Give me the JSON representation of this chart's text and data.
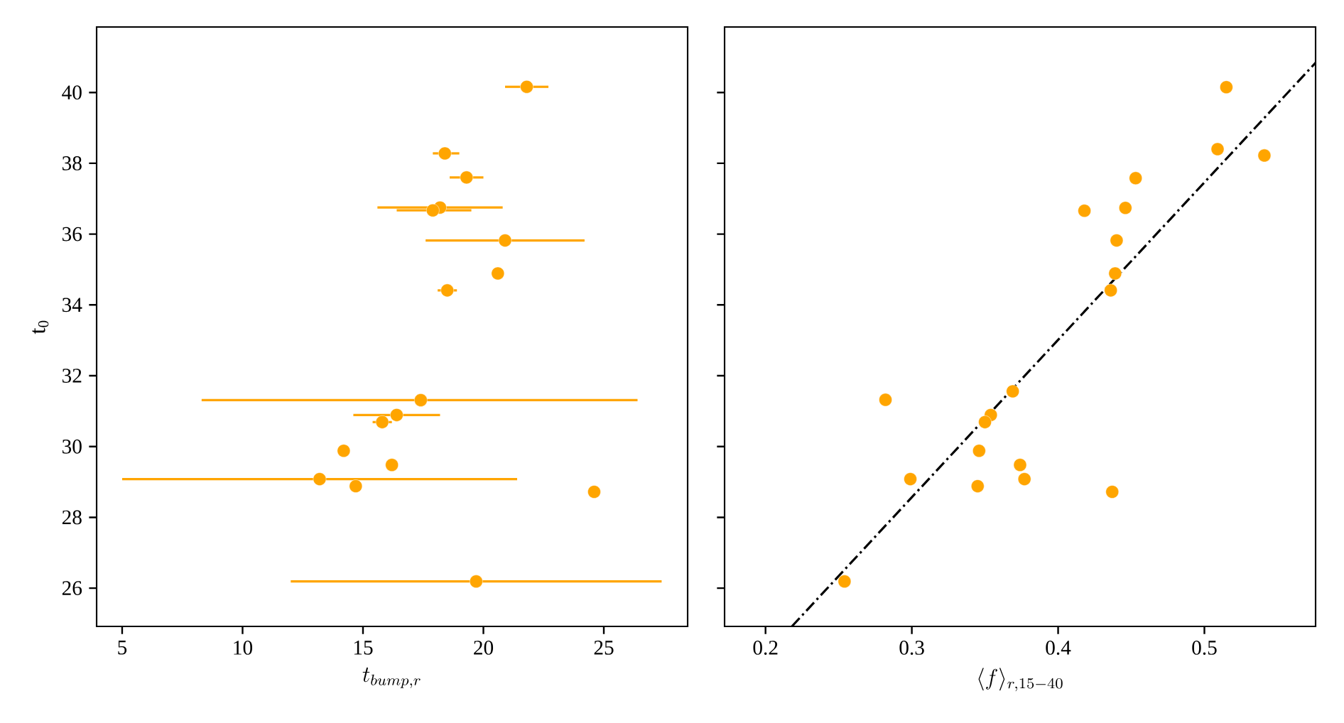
{
  "chart_data": [
    {
      "type": "scatter",
      "xlabel": "t_{bump,r}",
      "ylabel": "t$_{0}$",
      "grid": false,
      "xlim": [
        3.94,
        28.48
      ],
      "ylim": [
        24.92,
        41.85
      ],
      "xticks": [
        5,
        10,
        15,
        20,
        25
      ],
      "yticks": [
        26,
        28,
        30,
        32,
        34,
        36,
        38,
        40
      ],
      "series": [
        {
          "color": "#ffa500",
          "marker": "circle",
          "x": [
            21.8,
            18.4,
            19.3,
            18.2,
            17.9,
            20.9,
            20.6,
            18.5,
            17.4,
            16.4,
            15.8,
            14.2,
            16.2,
            13.2,
            14.7,
            24.6,
            19.7
          ],
          "values": [
            40.16,
            38.28,
            37.6,
            36.75,
            36.67,
            35.82,
            34.89,
            34.41,
            31.31,
            30.89,
            30.69,
            29.88,
            29.48,
            29.08,
            28.88,
            28.72,
            26.19
          ],
          "xerrors": [
            [
              20.9,
              22.7
            ],
            [
              17.9,
              19.0
            ],
            [
              18.6,
              20.0
            ],
            [
              15.6,
              20.8
            ],
            [
              16.4,
              19.5
            ],
            [
              17.6,
              24.2
            ],
            null,
            [
              18.1,
              18.9
            ],
            [
              8.3,
              26.4
            ],
            [
              14.6,
              18.2
            ],
            [
              15.4,
              16.2
            ],
            null,
            null,
            [
              5.0,
              21.4
            ],
            null,
            null,
            [
              12.0,
              27.4
            ]
          ]
        }
      ]
    },
    {
      "type": "scatter",
      "xlabel": "\\langle f\\rangle_{r,15-40}",
      "grid": false,
      "tick_labels": "x",
      "xlim": [
        0.172,
        0.576
      ],
      "ylim": [
        24.92,
        41.85
      ],
      "xticks": [
        0.2,
        0.3,
        0.4,
        0.5
      ],
      "yticks": [
        26,
        28,
        30,
        32,
        34,
        36,
        38,
        40
      ],
      "series": [
        {
          "type": "scatter",
          "color": "#ffa500",
          "marker": "circle",
          "x": [
            0.515,
            0.509,
            0.541,
            0.453,
            0.418,
            0.446,
            0.44,
            0.439,
            0.436,
            0.369,
            0.282,
            0.354,
            0.35,
            0.346,
            0.374,
            0.299,
            0.377,
            0.345,
            0.437,
            0.254
          ],
          "values": [
            40.15,
            38.4,
            38.22,
            37.58,
            36.66,
            36.74,
            35.82,
            34.89,
            34.41,
            31.56,
            31.32,
            30.89,
            30.69,
            29.88,
            29.48,
            29.08,
            29.08,
            28.88,
            28.72,
            26.19
          ]
        },
        {
          "type": "line",
          "color": "#000000",
          "marker": "none",
          "line_style": "dashdot",
          "x": [
            0.218,
            0.576
          ],
          "values": [
            24.92,
            40.84
          ]
        }
      ]
    }
  ]
}
